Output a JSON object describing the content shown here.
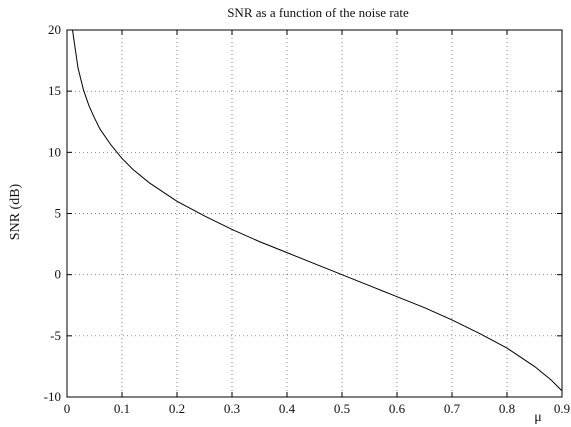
{
  "chart_data": {
    "type": "line",
    "title": "SNR as a function of the noise rate",
    "xlabel": "μ",
    "ylabel": "SNR  (dB)",
    "xlim": [
      0,
      0.9
    ],
    "ylim": [
      -10,
      20
    ],
    "xticks": [
      0,
      0.1,
      0.2,
      0.3,
      0.4,
      0.5,
      0.6,
      0.7,
      0.8,
      0.9
    ],
    "xtick_labels": [
      "0",
      "0.1",
      "0.2",
      "0.3",
      "0.4",
      "0.5",
      "0.6",
      "0.7",
      "0.8",
      "0.9"
    ],
    "yticks": [
      -10,
      -5,
      0,
      5,
      10,
      15,
      20
    ],
    "ytick_labels": [
      "-10",
      "-5",
      "0",
      "5",
      "10",
      "15",
      "20"
    ],
    "grid": true,
    "series": [
      {
        "x": [
          0.01,
          0.02,
          0.03,
          0.04,
          0.05,
          0.06,
          0.08,
          0.1,
          0.12,
          0.15,
          0.2,
          0.25,
          0.3,
          0.35,
          0.4,
          0.45,
          0.5,
          0.55,
          0.6,
          0.65,
          0.7,
          0.75,
          0.8,
          0.85,
          0.88,
          0.9
        ],
        "y": [
          20.0,
          16.9,
          15.1,
          13.8,
          12.8,
          11.9,
          10.6,
          9.5,
          8.6,
          7.5,
          6.0,
          4.8,
          3.7,
          2.7,
          1.8,
          0.9,
          0.0,
          -0.9,
          -1.8,
          -2.7,
          -3.7,
          -4.8,
          -6.0,
          -7.5,
          -8.6,
          -9.5
        ]
      }
    ]
  }
}
